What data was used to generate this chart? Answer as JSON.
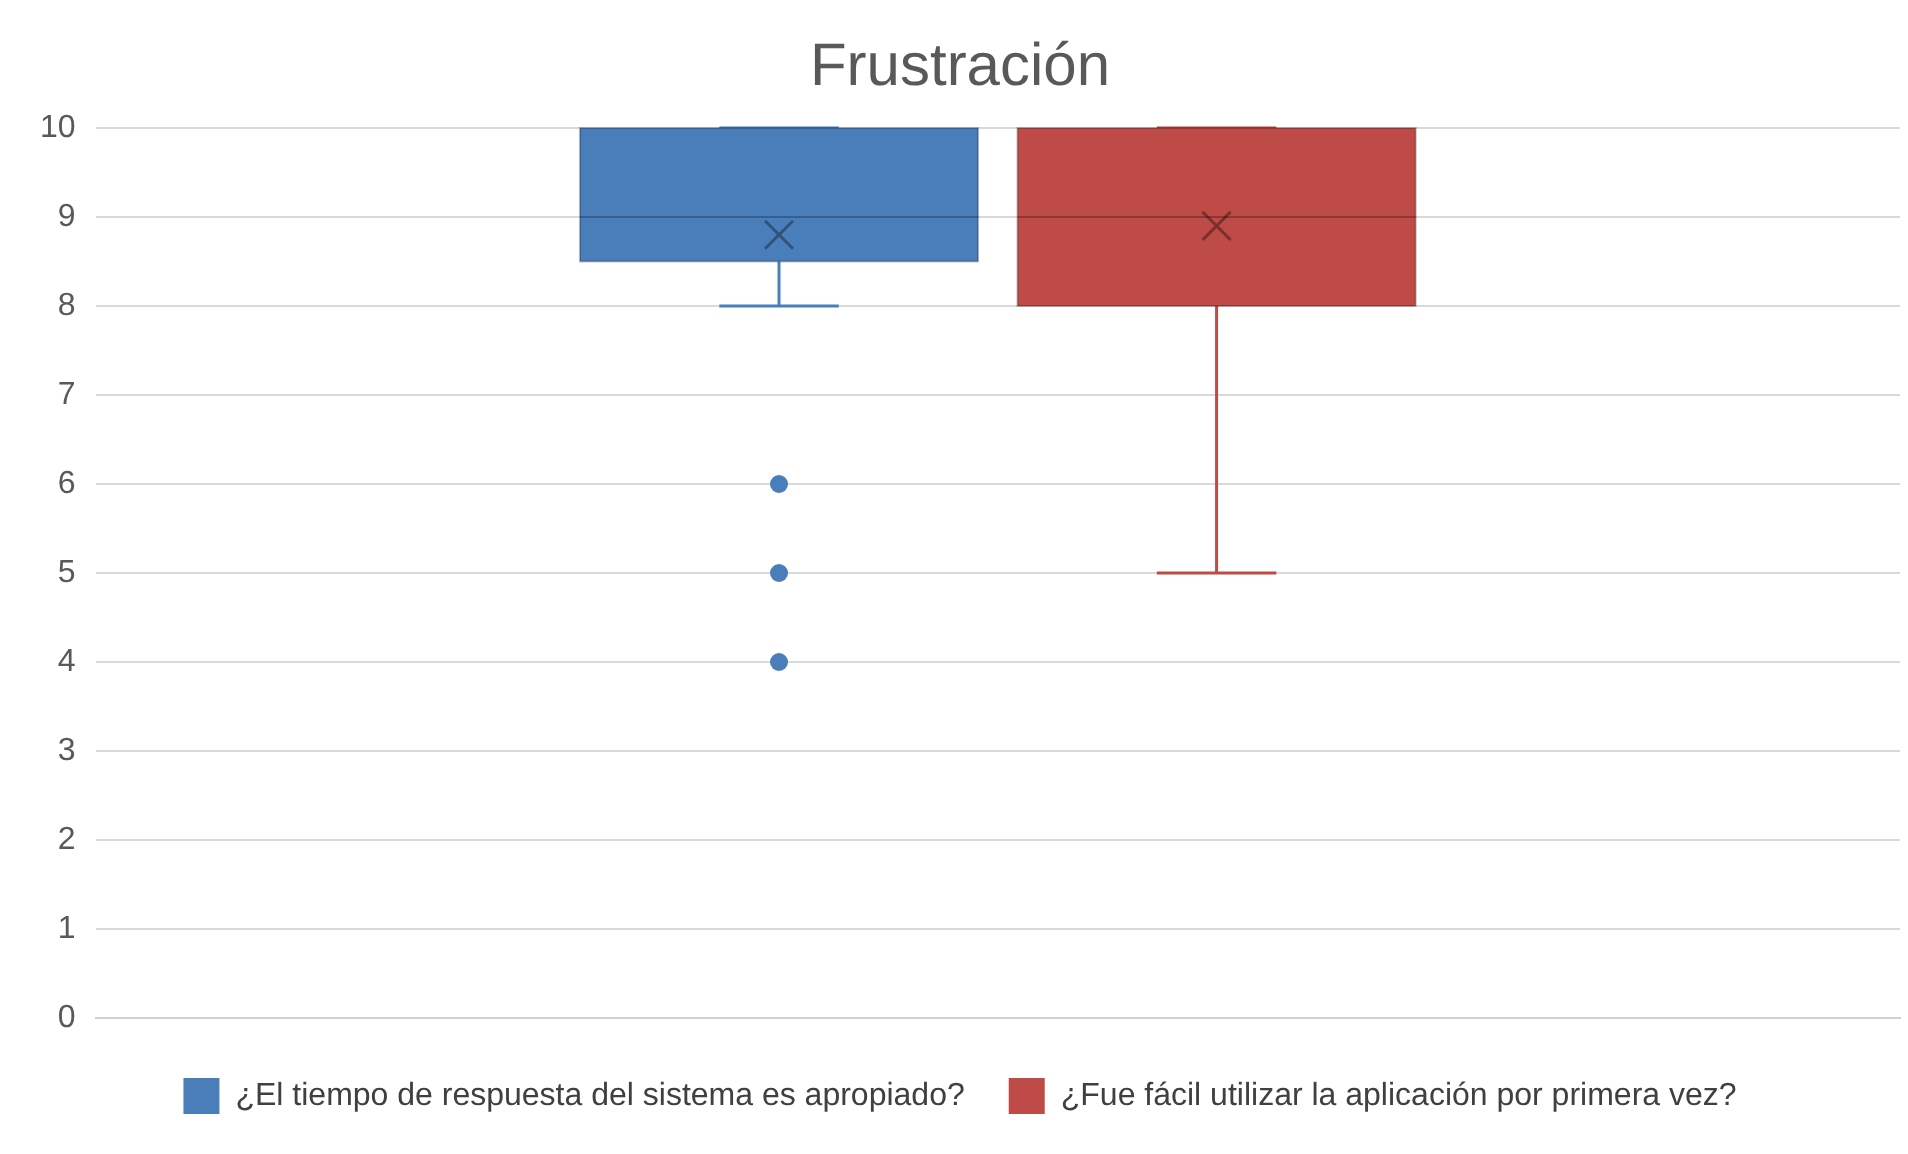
{
  "chart_data": {
    "type": "box",
    "title": "Frustración",
    "categories": [
      null
    ],
    "series": [
      {
        "name": "¿El tiempo de respuesta del sistema es apropiado?",
        "color": "#4a7ebb",
        "boxes": [
          {
            "low": 8,
            "q1": 8.5,
            "median": 9,
            "q3": 10,
            "high": 10,
            "mean": 8.8,
            "outliers": [
              6,
              5,
              4
            ]
          }
        ]
      },
      {
        "name": "¿Fue fácil utilizar la aplicación por primera vez?",
        "color": "#be4b48",
        "boxes": [
          {
            "low": 5,
            "q1": 8,
            "median": 9,
            "q3": 10,
            "high": 10,
            "mean": 8.9
          }
        ]
      }
    ],
    "ylim": [
      0,
      10
    ],
    "yticks": [
      0,
      1,
      2,
      3,
      4,
      5,
      6,
      7,
      8,
      9,
      10
    ],
    "grid": "y",
    "legend": "bottom",
    "tick_labels": "y",
    "marker": "circle"
  }
}
